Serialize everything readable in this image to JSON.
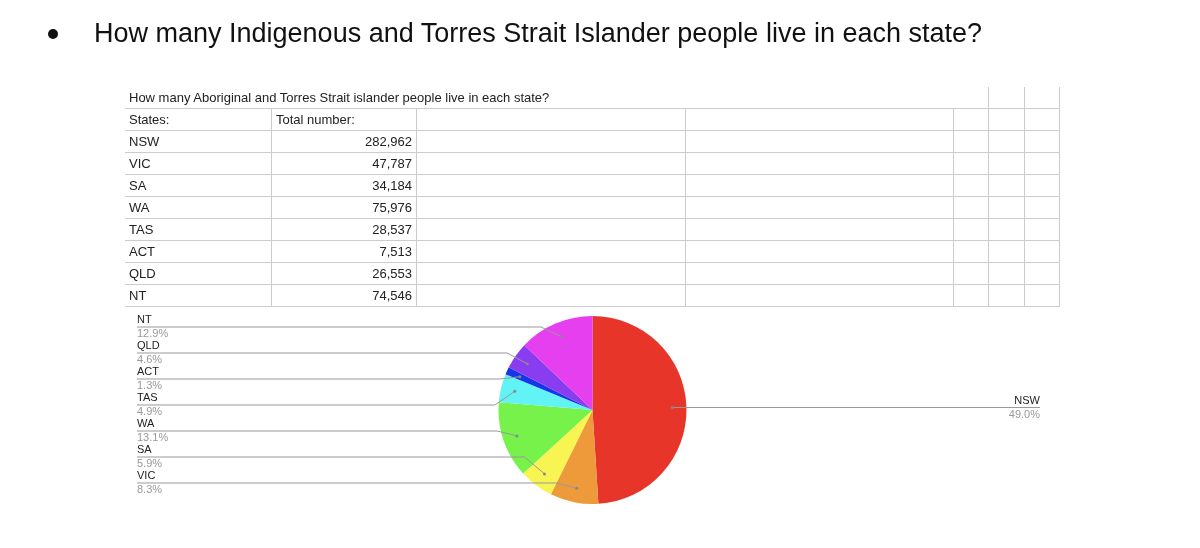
{
  "chart_data": [
    {
      "type": "other",
      "title": "How many Indigenous and Torres Strait Islander people live in each state?",
      "subtitle": "How many Aboriginal and Torres Strait islander people live in each state?",
      "xlabel": "States:",
      "ylabel": "Total number:",
      "categories": [
        "NSW",
        "VIC",
        "SA",
        "WA",
        "TAS",
        "ACT",
        "QLD",
        "NT"
      ],
      "data_labels": true,
      "value_labels": [
        "282,962",
        "47,787",
        "34,184",
        "75,976",
        "28,537",
        "7,513",
        "26,553",
        "74,546"
      ]
    },
    {
      "type": "pie",
      "categories": [
        "NSW",
        "VIC",
        "SA",
        "WA",
        "TAS",
        "ACT",
        "QLD",
        "NT"
      ],
      "values": [
        49.0,
        8.3,
        5.9,
        13.1,
        4.9,
        1.3,
        4.6,
        12.9
      ],
      "value_labels": [
        "49.0%",
        "8.3%",
        "5.9%",
        "13.1%",
        "4.9%",
        "1.3%",
        "4.6%",
        "12.9%"
      ],
      "colors": [
        "#e8352a",
        "#ef9a3a",
        "#f8f552",
        "#77f24a",
        "#62f4f4",
        "#1636e8",
        "#8a3cf0",
        "#e63ff0"
      ],
      "legend": false
    }
  ]
}
